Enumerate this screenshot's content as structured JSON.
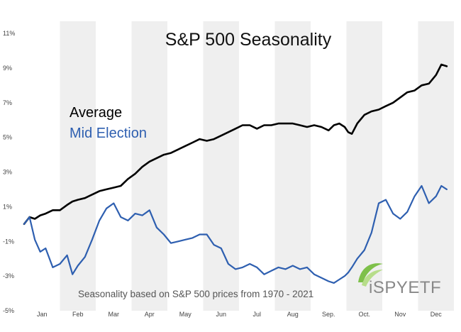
{
  "chart_data": {
    "type": "line",
    "title": "S&P 500 Seasonality",
    "xlabel": "",
    "ylabel": "",
    "ylim": [
      -5,
      11
    ],
    "yticks": [
      11,
      9,
      7,
      5,
      3,
      1,
      -1,
      -3,
      -5
    ],
    "ytick_labels": [
      "11%",
      "9%",
      "7%",
      "5%",
      "3%",
      "1%",
      "-1%",
      "-3%",
      "-5%"
    ],
    "xlim": [
      0,
      12
    ],
    "months": [
      "Jan",
      "Feb",
      "Mar",
      "Apr",
      "May",
      "Jun",
      "Jul",
      "Aug",
      "Sep.",
      "Oct.",
      "Nov",
      "Dec"
    ],
    "grid": false,
    "shaded_alternate_months": true,
    "legend_placement": "upper-left",
    "series": [
      {
        "name": "Average",
        "color": "#000000",
        "x": [
          0.0,
          0.15,
          0.3,
          0.45,
          0.6,
          0.8,
          1.0,
          1.2,
          1.35,
          1.5,
          1.7,
          1.9,
          2.1,
          2.3,
          2.5,
          2.7,
          2.9,
          3.1,
          3.3,
          3.5,
          3.7,
          3.9,
          4.1,
          4.3,
          4.5,
          4.7,
          4.9,
          5.1,
          5.3,
          5.5,
          5.7,
          5.9,
          6.1,
          6.3,
          6.5,
          6.7,
          6.9,
          7.1,
          7.3,
          7.5,
          7.7,
          7.9,
          8.1,
          8.3,
          8.5,
          8.65,
          8.8,
          8.95,
          9.05,
          9.15,
          9.3,
          9.5,
          9.7,
          9.9,
          10.1,
          10.3,
          10.5,
          10.7,
          10.9,
          11.1,
          11.3,
          11.5,
          11.65,
          11.8
        ],
        "y": [
          0.0,
          0.4,
          0.3,
          0.5,
          0.6,
          0.8,
          0.8,
          1.1,
          1.3,
          1.4,
          1.5,
          1.7,
          1.9,
          2.0,
          2.1,
          2.2,
          2.6,
          2.9,
          3.3,
          3.6,
          3.8,
          4.0,
          4.1,
          4.3,
          4.5,
          4.7,
          4.9,
          4.8,
          4.9,
          5.1,
          5.3,
          5.5,
          5.7,
          5.7,
          5.5,
          5.7,
          5.7,
          5.8,
          5.8,
          5.8,
          5.7,
          5.6,
          5.7,
          5.6,
          5.4,
          5.7,
          5.8,
          5.6,
          5.3,
          5.2,
          5.8,
          6.3,
          6.5,
          6.6,
          6.8,
          7.0,
          7.3,
          7.6,
          7.7,
          8.0,
          8.1,
          8.6,
          9.2,
          9.1
        ]
      },
      {
        "name": "Mid Election",
        "color": "#2e5fb0",
        "x": [
          0.0,
          0.15,
          0.3,
          0.45,
          0.6,
          0.8,
          1.0,
          1.2,
          1.35,
          1.5,
          1.7,
          1.9,
          2.1,
          2.3,
          2.5,
          2.7,
          2.9,
          3.1,
          3.3,
          3.5,
          3.7,
          3.9,
          4.1,
          4.3,
          4.5,
          4.7,
          4.9,
          5.1,
          5.3,
          5.5,
          5.7,
          5.9,
          6.1,
          6.3,
          6.5,
          6.7,
          6.9,
          7.1,
          7.3,
          7.5,
          7.7,
          7.9,
          8.1,
          8.3,
          8.5,
          8.65,
          8.8,
          8.95,
          9.05,
          9.15,
          9.3,
          9.5,
          9.7,
          9.9,
          10.1,
          10.3,
          10.5,
          10.7,
          10.9,
          11.1,
          11.3,
          11.5,
          11.65,
          11.8
        ],
        "y": [
          0.0,
          0.4,
          -0.9,
          -1.6,
          -1.4,
          -2.5,
          -2.3,
          -1.8,
          -2.9,
          -2.4,
          -1.9,
          -0.9,
          0.2,
          0.9,
          1.2,
          0.4,
          0.2,
          0.6,
          0.5,
          0.8,
          -0.2,
          -0.6,
          -1.1,
          -1.0,
          -0.9,
          -0.8,
          -0.6,
          -0.6,
          -1.2,
          -1.4,
          -2.3,
          -2.6,
          -2.5,
          -2.3,
          -2.5,
          -2.9,
          -2.7,
          -2.5,
          -2.6,
          -2.4,
          -2.6,
          -2.5,
          -2.9,
          -3.1,
          -3.3,
          -3.4,
          -3.2,
          -3.0,
          -2.8,
          -2.5,
          -2.0,
          -1.5,
          -0.5,
          1.2,
          1.4,
          0.6,
          0.3,
          0.7,
          1.6,
          2.2,
          1.2,
          1.6,
          2.2,
          2.0
        ]
      }
    ],
    "annotations": [
      {
        "text": "Seasonality based on S&P 500 prices from 1970 - 2021"
      }
    ]
  },
  "logo": {
    "text": "iSPYETF",
    "name": "iSPYETF logo"
  }
}
